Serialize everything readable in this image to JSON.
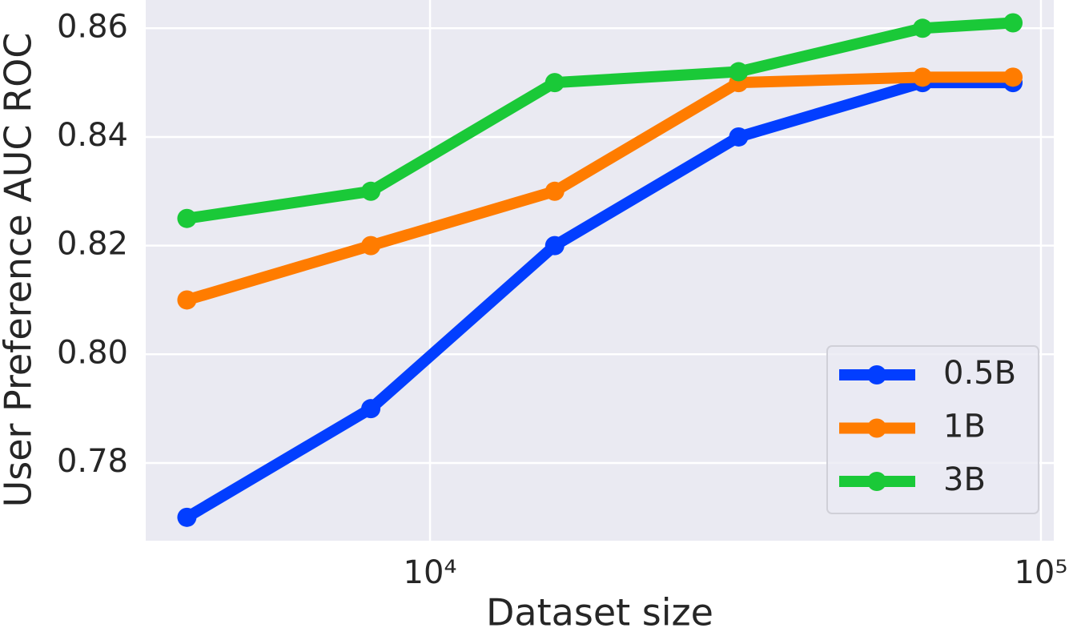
{
  "chart_data": {
    "type": "line",
    "x_label": "Dataset size",
    "y_label": "User Preference AUC ROC",
    "x": [
      4000,
      8000,
      16000,
      32000,
      64000,
      90000
    ],
    "x_scale": "log",
    "series": [
      {
        "name": "0.5B",
        "color": "#023eff",
        "values": [
          0.77,
          0.79,
          0.82,
          0.84,
          0.85,
          0.85
        ]
      },
      {
        "name": "1B",
        "color": "#ff7c00",
        "values": [
          0.81,
          0.82,
          0.83,
          0.85,
          0.851,
          0.851
        ]
      },
      {
        "name": "3B",
        "color": "#1ac938",
        "values": [
          0.825,
          0.83,
          0.85,
          0.852,
          0.86,
          0.861
        ]
      }
    ],
    "xlim": [
      3425,
      104960
    ],
    "ylim": [
      0.7657,
      0.8652
    ],
    "xticks": [
      {
        "value": 10000,
        "label": "10⁴"
      },
      {
        "value": 100000,
        "label": "10⁵"
      }
    ],
    "yticks": [
      0.78,
      {
        "value": 0.8,
        "label": "0.80"
      },
      0.82,
      0.84,
      0.86
    ],
    "grid": true,
    "legend": "lower right"
  }
}
